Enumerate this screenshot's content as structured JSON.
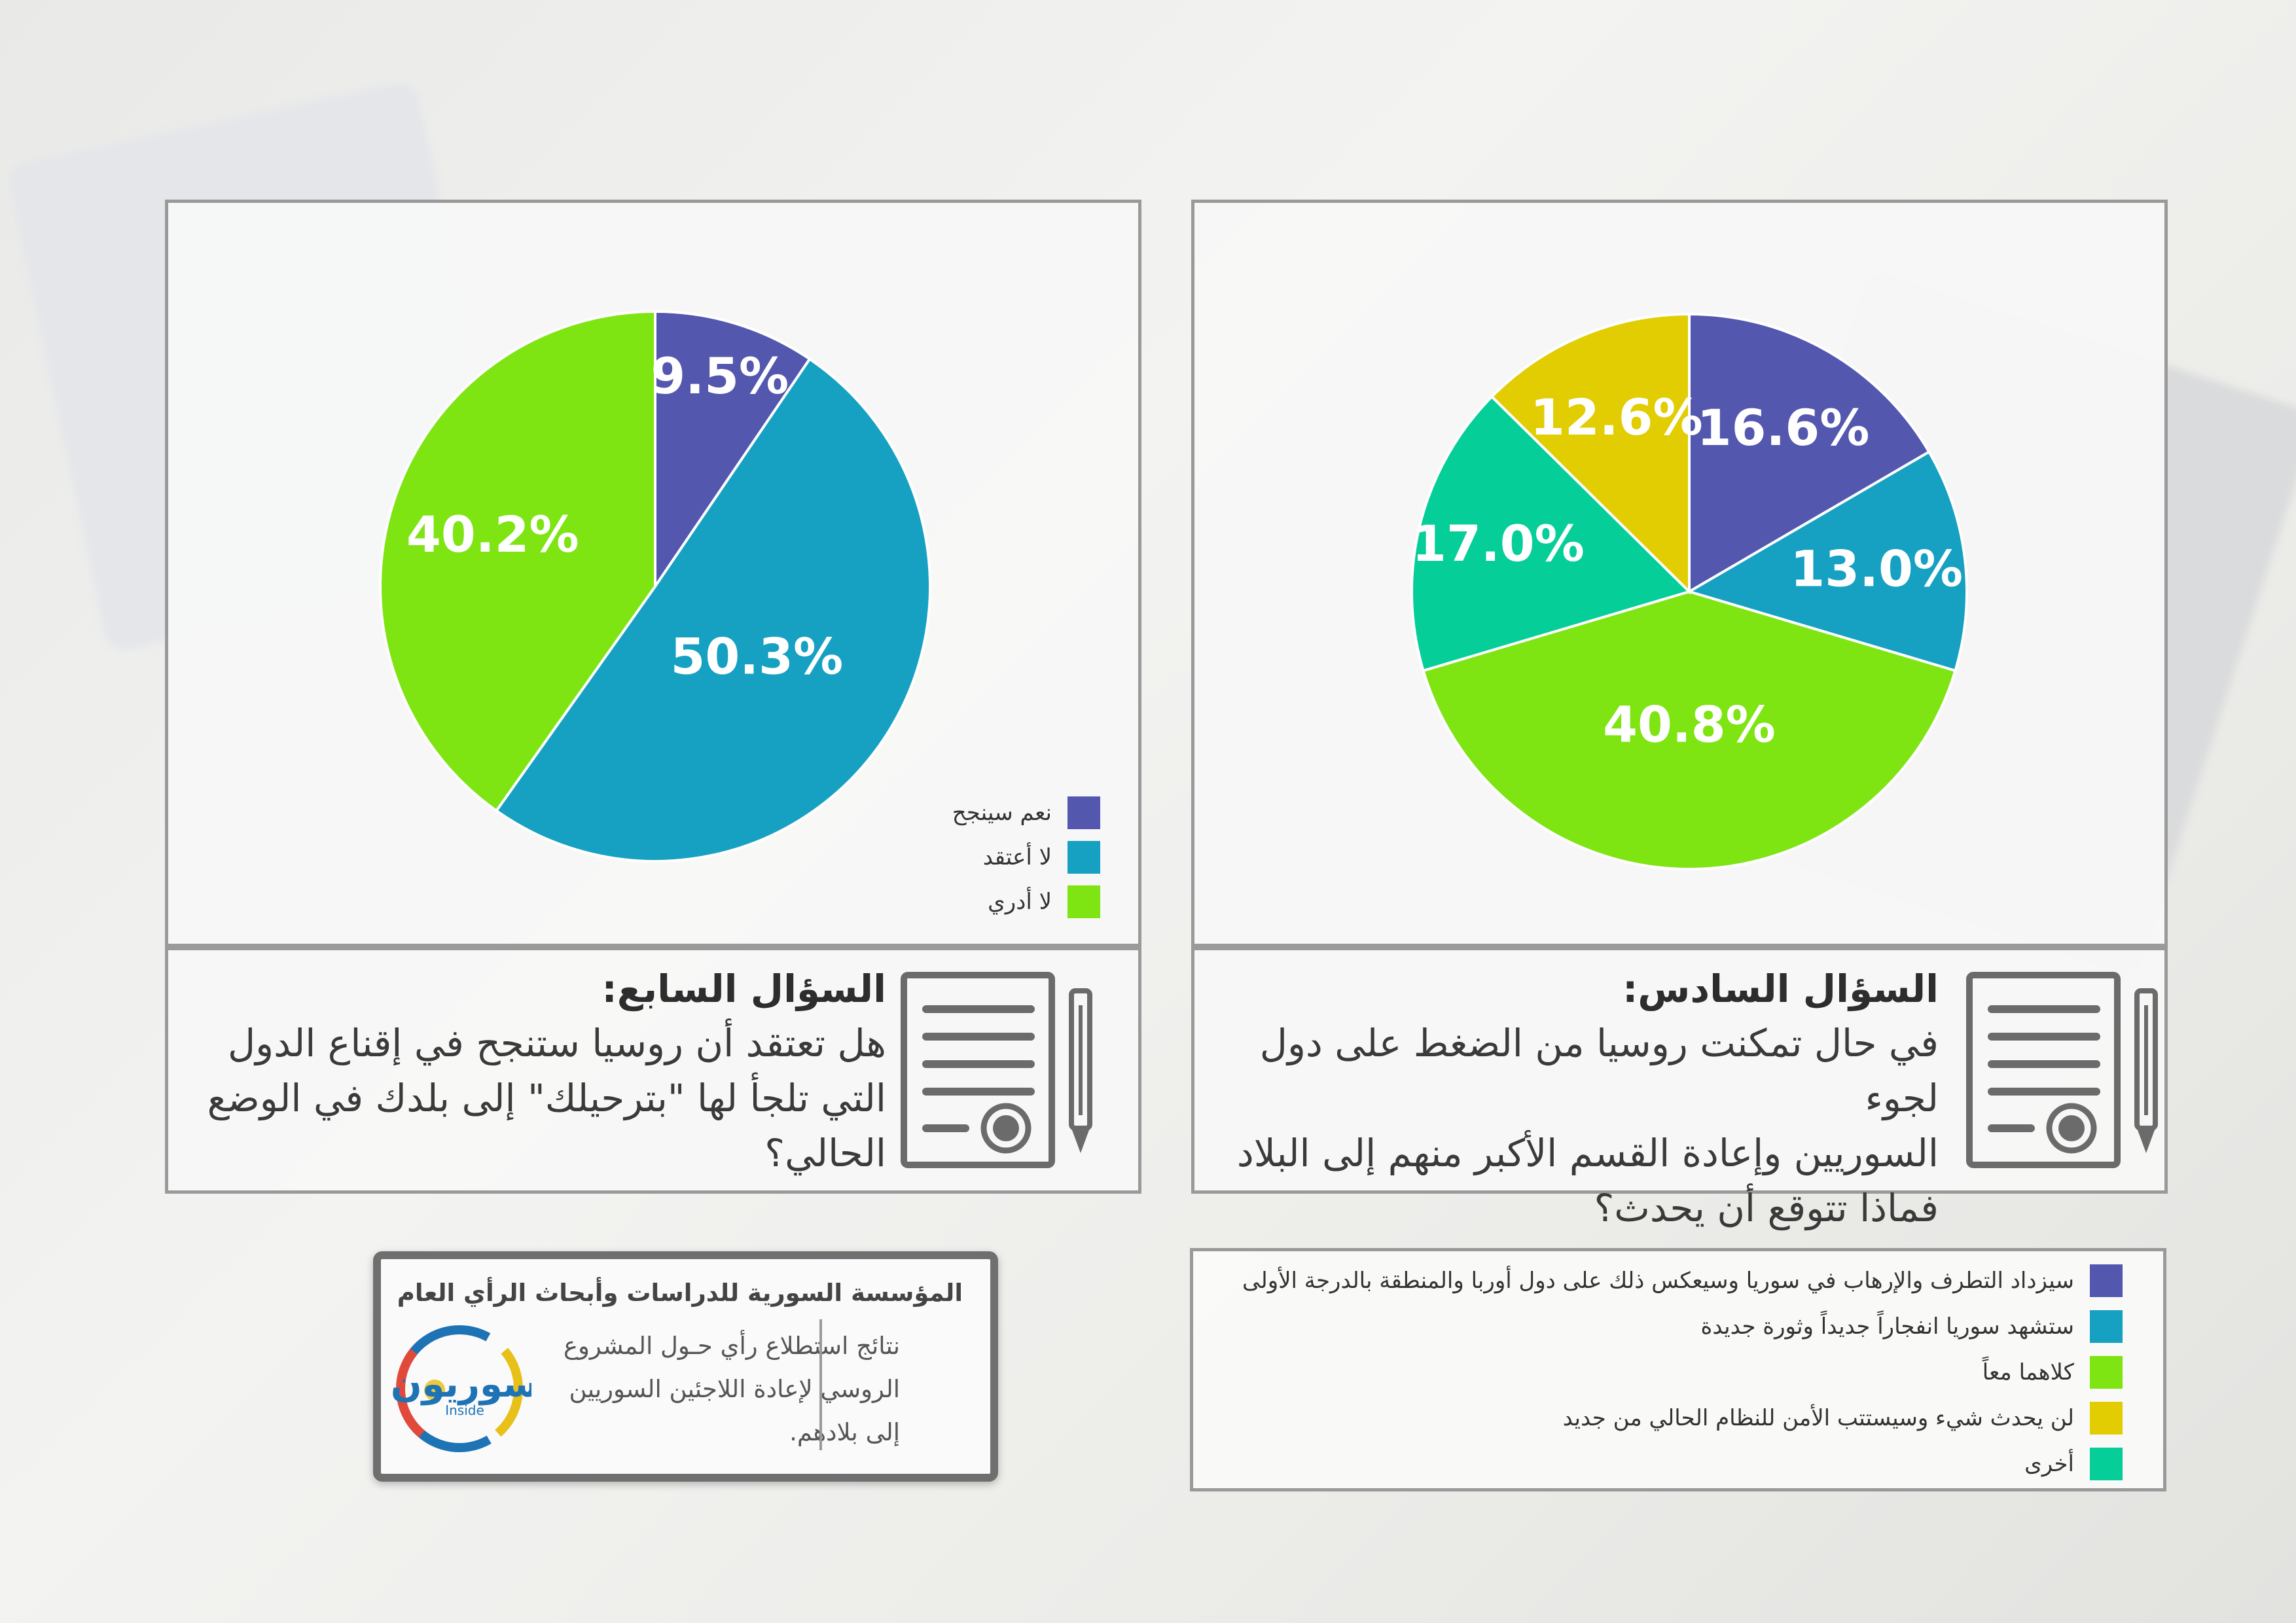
{
  "colors": {
    "purple": "#5357AE",
    "blue": "#16A1C2",
    "green": "#7EE412",
    "yellow": "#E1CD02",
    "teal": "#06CE99",
    "panel_border": "#9a9a9a"
  },
  "chart_data": [
    {
      "type": "pie",
      "question_label": "السؤال السابع:",
      "question_text": "هل تعتقد أن روسيا ستنجح في إقناع الدول التي تلجأ لها \"بترحيلك\" إلى بلدك في الوضع الحالي؟",
      "question_lines": [
        "هل تعتقد أن روسيا ستنجح في إقناع الدول",
        "التي تلجأ لها \"بترحيلك\" إلى بلدك في الوضع",
        "الحالي؟"
      ],
      "slices": [
        {
          "label": "نعم سينجح",
          "value": 9.5,
          "display": "9.5%",
          "color": "#5357AE"
        },
        {
          "label": "لا أعتقد",
          "value": 50.3,
          "display": "50.3%",
          "color": "#16A1C2"
        },
        {
          "label": "لا أدري",
          "value": 40.2,
          "display": "40.2%",
          "color": "#7EE412"
        }
      ],
      "legend_position": "bottom-right"
    },
    {
      "type": "pie",
      "question_label": "السؤال السادس:",
      "question_text": "في حال تمكنت روسيا من الضغط على دول لجوء السوريين وإعادة القسم الأكبر منهم إلى البلاد فماذا تتوقع أن يحدث؟",
      "question_lines": [
        "في حال تمكنت روسيا من الضغط على دول لجوء",
        "السوريين وإعادة القسم الأكبر منهم إلى البلاد",
        "فماذا تتوقع أن يحدث؟"
      ],
      "slices": [
        {
          "label": "سيزداد التطرف والإرهاب في سوريا وسيعكس ذلك على دول أوربا والمنطقة بالدرجة الأولى",
          "value": 16.6,
          "display": "16.6%",
          "color": "#5357AE"
        },
        {
          "label": "ستشهد سوريا انفجاراً جديداً وثورة جديدة",
          "value": 13.0,
          "display": "13.0%",
          "color": "#16A1C2"
        },
        {
          "label": "كلاهما معاً",
          "value": 40.8,
          "display": "40.8%",
          "color": "#7EE412"
        },
        {
          "label": "أخرى",
          "value": 17.0,
          "display": "17.0%",
          "color": "#06CE99"
        },
        {
          "label": "لن يحدث شيء وسيستتب الأمن للنظام الحالي من جديد",
          "value": 12.6,
          "display": "12.6%",
          "color": "#E1CD02"
        }
      ],
      "legend_order": [
        0,
        1,
        2,
        4,
        3
      ],
      "legend_position": "bottom"
    }
  ],
  "info_box": {
    "org_name": "المؤسسة السورية للدراسات وأبحاث الرأي العام",
    "description": "نتائج استطلاع رأي حـول المشروع الروسي لإعادة اللاجئين السوريين إلى بلادهم.",
    "description_lines": [
      "نتائج استطلاع رأي حـول المشروع",
      "الروسي لإعادة اللاجئين السوريين",
      "إلى بلادهم."
    ],
    "logo_main": "سوريون",
    "logo_sub": "Inside",
    "logo_icon": "logo-circle-icon"
  },
  "icons": {
    "document": "document-seal-icon",
    "pen": "pen-icon"
  }
}
